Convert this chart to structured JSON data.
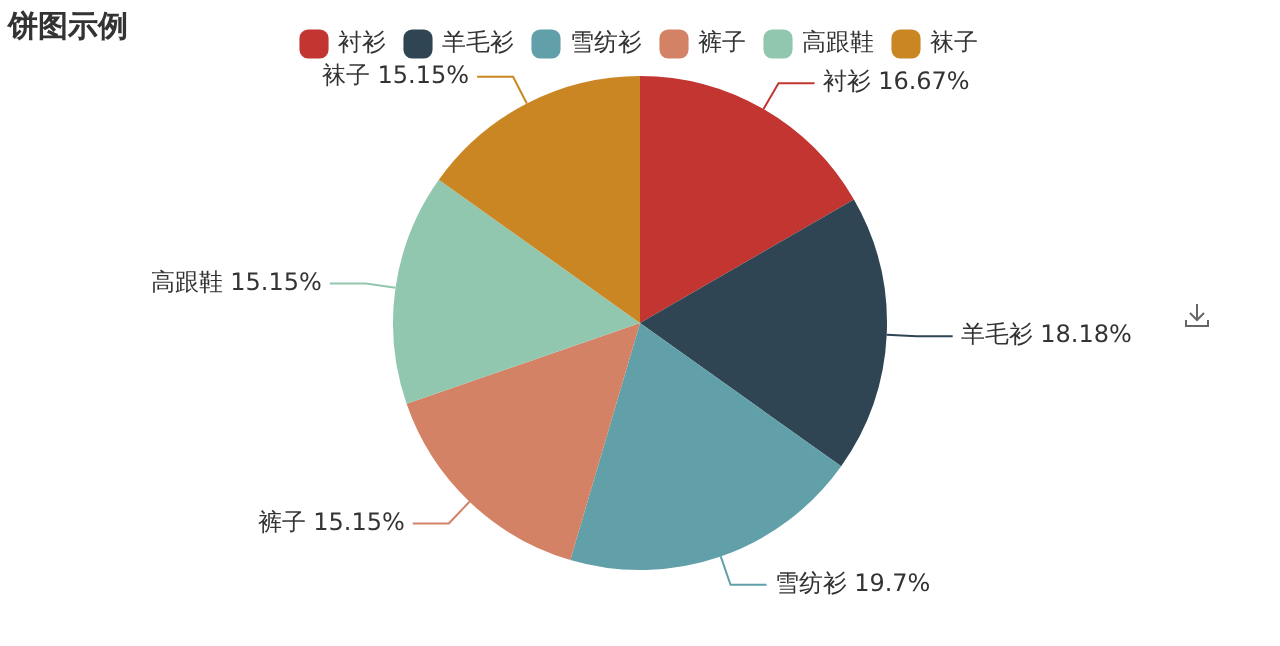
{
  "chart_data": {
    "type": "pie",
    "title": "饼图示例",
    "categories": [
      "衬衫",
      "羊毛衫",
      "雪纺衫",
      "裤子",
      "高跟鞋",
      "袜子"
    ],
    "values": [
      16.67,
      18.18,
      19.7,
      15.15,
      15.15,
      15.15
    ],
    "value_labels": [
      "16.67%",
      "18.18%",
      "19.7%",
      "15.15%",
      "15.15%",
      "15.15%"
    ],
    "colors": [
      "#c23531",
      "#2f4554",
      "#61a0a8",
      "#d48265",
      "#91c7ae",
      "#ca8622"
    ],
    "legend": "top"
  }
}
